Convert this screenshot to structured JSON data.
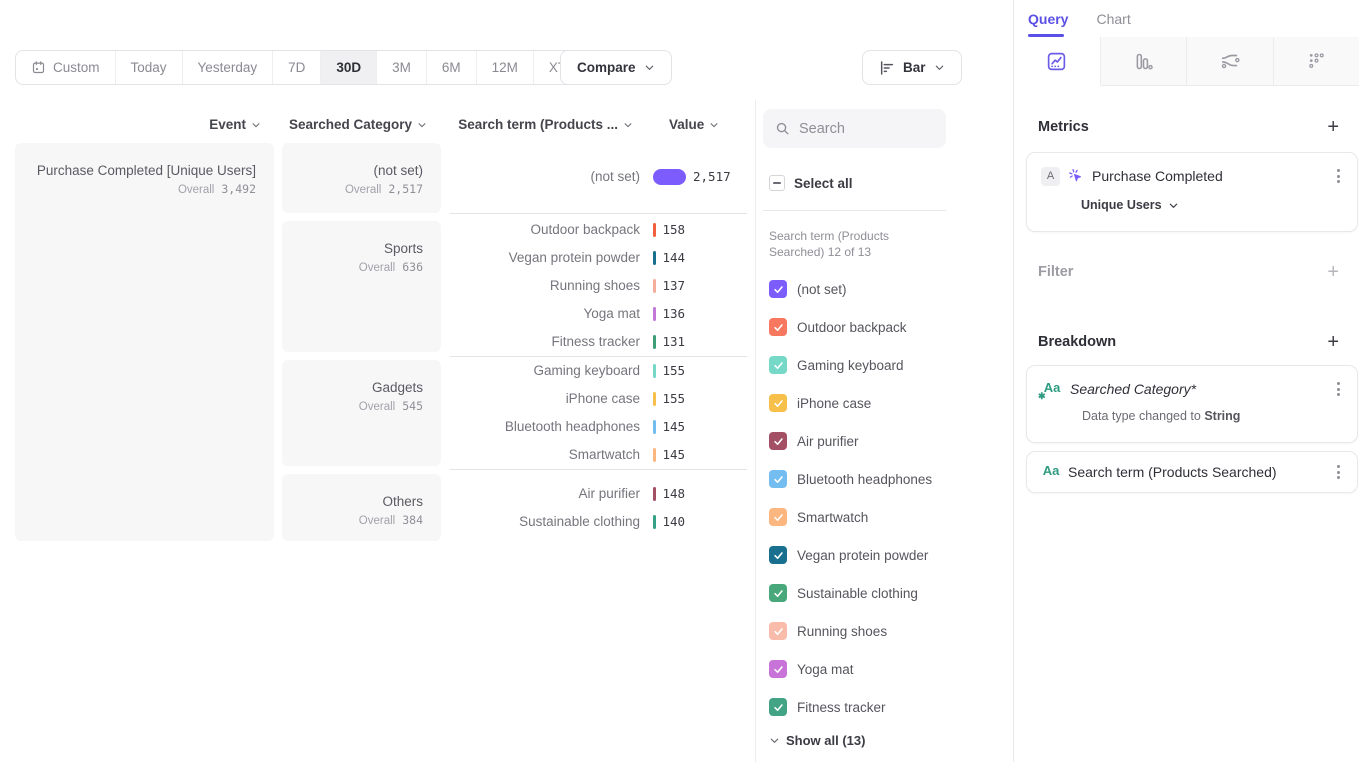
{
  "toolbar": {
    "date_ranges": [
      "Custom",
      "Today",
      "Yesterday",
      "7D",
      "30D",
      "3M",
      "6M",
      "12M",
      "XTD"
    ],
    "selected_range": "30D",
    "compare_label": "Compare",
    "chart_type_label": "Bar"
  },
  "table": {
    "headers": {
      "event": "Event",
      "category": "Searched Category",
      "term": "Search term (Products ...",
      "value": "Value"
    },
    "overall_label": "Overall",
    "event": {
      "name": "Purchase Completed [Unique Users]",
      "overall": "3,492"
    },
    "max_value": 2517,
    "groups": [
      {
        "category": "(not set)",
        "overall": "2,517",
        "rows": [
          {
            "term": "(not set)",
            "value": "2,517",
            "color": "#7c5cfc",
            "big": true
          }
        ]
      },
      {
        "category": "Sports",
        "overall": "636",
        "rows": [
          {
            "term": "Outdoor backpack",
            "value": "158",
            "color": "#f2603f"
          },
          {
            "term": "Vegan protein powder",
            "value": "144",
            "color": "#19708e"
          },
          {
            "term": "Running shoes",
            "value": "137",
            "color": "#f5ae9b"
          },
          {
            "term": "Yoga mat",
            "value": "136",
            "color": "#c278d8"
          },
          {
            "term": "Fitness tracker",
            "value": "131",
            "color": "#3e9e77"
          }
        ]
      },
      {
        "category": "Gadgets",
        "overall": "545",
        "rows": [
          {
            "term": "Gaming keyboard",
            "value": "155",
            "color": "#76d9c8"
          },
          {
            "term": "iPhone case",
            "value": "155",
            "color": "#f6c04a"
          },
          {
            "term": "Bluetooth headphones",
            "value": "145",
            "color": "#74bdf0"
          },
          {
            "term": "Smartwatch",
            "value": "145",
            "color": "#fbb77f"
          }
        ]
      },
      {
        "category": "Others",
        "overall": "384",
        "rows": [
          {
            "term": "Air purifier",
            "value": "148",
            "color": "#a34f64"
          },
          {
            "term": "Sustainable clothing",
            "value": "140",
            "color": "#35a287"
          }
        ]
      }
    ]
  },
  "legend": {
    "search_placeholder": "Search",
    "select_all_label": "Select all",
    "group_label": "Search term (Products Searched) 12 of 13",
    "show_all_label": "Show all (13)",
    "items": [
      {
        "label": "(not set)",
        "color": "#7c5cfc",
        "checked": true
      },
      {
        "label": "Outdoor backpack",
        "color": "#f8775f",
        "checked": true
      },
      {
        "label": "Gaming keyboard",
        "color": "#76d9c8",
        "checked": true
      },
      {
        "label": "iPhone case",
        "color": "#f6c04a",
        "checked": true
      },
      {
        "label": "Air purifier",
        "color": "#a34f64",
        "checked": true
      },
      {
        "label": "Bluetooth headphones",
        "color": "#74bdf0",
        "checked": true
      },
      {
        "label": "Smartwatch",
        "color": "#fbb77f",
        "checked": true
      },
      {
        "label": "Vegan protein powder",
        "color": "#19708e",
        "checked": true
      },
      {
        "label": "Sustainable clothing",
        "color": "#48a87b",
        "checked": true
      },
      {
        "label": "Running shoes",
        "color": "#f9bcab",
        "checked": true
      },
      {
        "label": "Yoga mat",
        "color": "#c873d8",
        "checked": true
      },
      {
        "label": "Fitness tracker",
        "color": "#43a385",
        "checked": true
      }
    ]
  },
  "query_panel": {
    "tabs": {
      "query": "Query",
      "chart": "Chart"
    },
    "active_tab": "Query",
    "accent_color": "#5b50e6",
    "metrics": {
      "title": "Metrics",
      "badge": "A",
      "event_name": "Purchase Completed",
      "measure": "Unique Users"
    },
    "filter": {
      "title": "Filter"
    },
    "breakdown": {
      "title": "Breakdown",
      "items": [
        {
          "name": "Searched Category*",
          "note_prefix": "Data type changed to ",
          "note_bold": "String"
        },
        {
          "name": "Search term (Products Searched)"
        }
      ]
    }
  }
}
